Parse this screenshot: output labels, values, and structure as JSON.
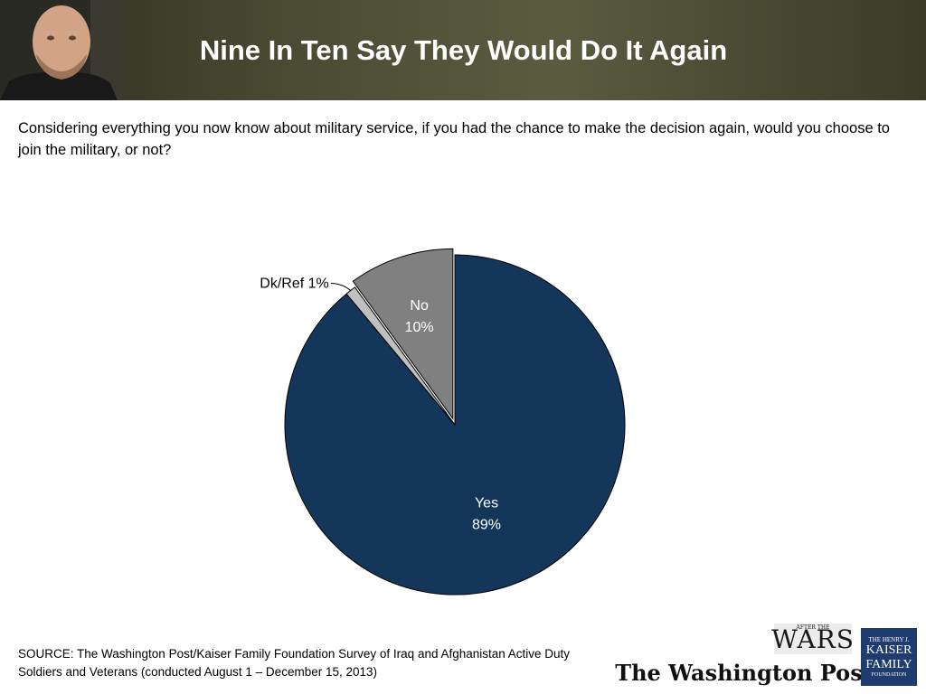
{
  "header": {
    "title": "Nine In Ten Say They Would Do It Again"
  },
  "question": "Considering everything you now know about military service, if you had the chance to make the decision again, would you choose to join the military, or not?",
  "chart_data": {
    "type": "pie",
    "title": "",
    "start_angle_deg": 0,
    "direction": "clockwise",
    "slices": [
      {
        "label": "Yes",
        "value": 89,
        "value_label": "89%",
        "color": "#14365a"
      },
      {
        "label": "Dk/Ref",
        "value": 1,
        "value_label": "Dk/Ref 1%",
        "color": "#c0c0c0"
      },
      {
        "label": "No",
        "value": 10,
        "value_label": "10%",
        "color": "#808080"
      }
    ],
    "exploded_slice": "No",
    "legend": "none"
  },
  "source": {
    "line1": "SOURCE: The Washington Post/Kaiser Family Foundation Survey of Iraq and Afghanistan Active Duty",
    "line2": "Soldiers and Veterans (conducted August 1 – December 15, 2013)"
  },
  "logos": {
    "wars_small": "AFTER THE",
    "wars": "WARS",
    "wapo": "The Washington Post",
    "kff_line1": "THE HENRY J.",
    "kff_line2": "KAISER",
    "kff_line3": "FAMILY",
    "kff_line4": "FOUNDATION"
  },
  "colors": {
    "header_band": "#4a4a33",
    "yes_slice": "#14365a",
    "no_slice": "#808080",
    "dkref_slice": "#c0c0c0"
  }
}
